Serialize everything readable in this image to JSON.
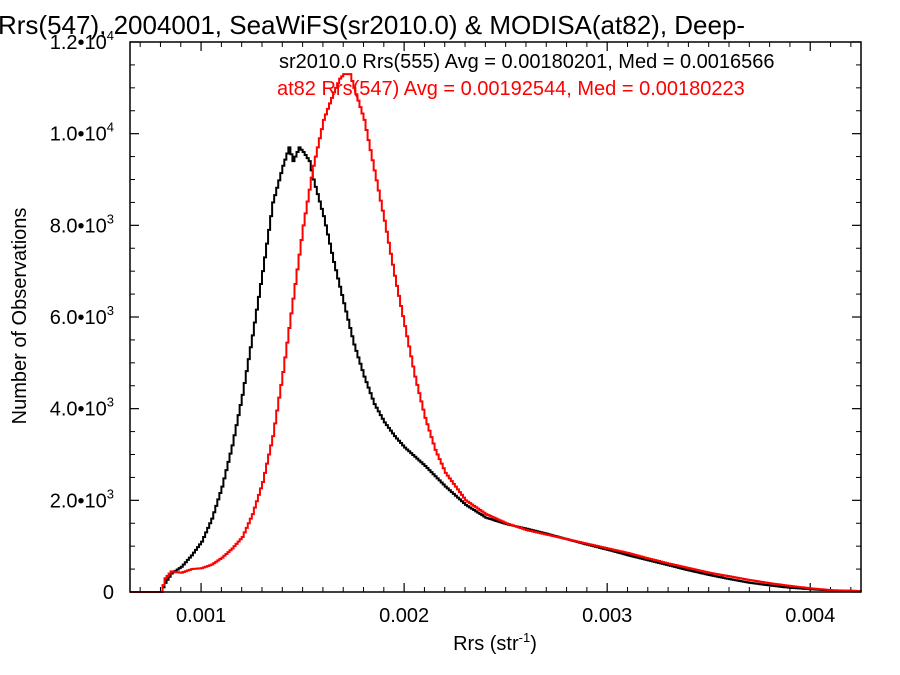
{
  "chart_data": {
    "type": "line",
    "step": true,
    "title": "Rrs(547), 2004001, SeaWiFS(sr2010.0) & MODISA(at82), Deep-",
    "xlabel": "Rrs (str",
    "xlabel_sup": "-1",
    "xlabel_end": ")",
    "ylabel": "Number of Observations",
    "xlim": [
      0.00065,
      0.00425
    ],
    "ylim": [
      0,
      12000
    ],
    "x_ticks": [
      {
        "value": 0.001,
        "label": "0.001"
      },
      {
        "value": 0.002,
        "label": "0.002"
      },
      {
        "value": 0.003,
        "label": "0.003"
      },
      {
        "value": 0.004,
        "label": "0.004"
      }
    ],
    "y_ticks": [
      {
        "value": 0,
        "mant": "0",
        "exp": ""
      },
      {
        "value": 2000,
        "mant": "2.0•10",
        "exp": "3"
      },
      {
        "value": 4000,
        "mant": "4.0•10",
        "exp": "3"
      },
      {
        "value": 6000,
        "mant": "6.0•10",
        "exp": "3"
      },
      {
        "value": 8000,
        "mant": "8.0•10",
        "exp": "3"
      },
      {
        "value": 10000,
        "mant": "1.0•10",
        "exp": "4"
      },
      {
        "value": 12000,
        "mant": "1.2•10",
        "exp": "4"
      }
    ],
    "legend": [
      {
        "text": "sr2010.0 Rrs(555) Avg = 0.00180201, Med = 0.0016566",
        "color": "#000000"
      },
      {
        "text": "at82 Rrs(547) Avg = 0.00192544, Med = 0.00180223",
        "color": "#ff0000"
      }
    ],
    "series": [
      {
        "color": "#000000",
        "x": [
          0.00065,
          0.0008,
          0.00082,
          0.00085,
          0.0009,
          0.00095,
          0.001,
          0.00105,
          0.0011,
          0.00115,
          0.0012,
          0.00125,
          0.0013,
          0.00135,
          0.0014,
          0.00143,
          0.00145,
          0.00148,
          0.0015,
          0.00153,
          0.00155,
          0.0016,
          0.00165,
          0.0017,
          0.00175,
          0.0018,
          0.00185,
          0.0019,
          0.00195,
          0.002,
          0.0021,
          0.0022,
          0.0023,
          0.0024,
          0.0025,
          0.0026,
          0.0027,
          0.0028,
          0.0029,
          0.003,
          0.0031,
          0.0032,
          0.0033,
          0.0034,
          0.0035,
          0.0036,
          0.0037,
          0.0038,
          0.0039,
          0.004,
          0.0041,
          0.00425
        ],
        "y": [
          0,
          0,
          200,
          400,
          550,
          800,
          1100,
          1600,
          2300,
          3200,
          4300,
          5600,
          7000,
          8500,
          9300,
          9700,
          9400,
          9700,
          9600,
          9400,
          9000,
          8200,
          7200,
          6300,
          5400,
          4700,
          4100,
          3700,
          3400,
          3150,
          2750,
          2300,
          1900,
          1620,
          1480,
          1380,
          1270,
          1150,
          1030,
          920,
          800,
          690,
          580,
          470,
          370,
          280,
          200,
          140,
          90,
          60,
          35,
          20
        ]
      },
      {
        "color": "#ff0000",
        "x": [
          0.00065,
          0.0008,
          0.00082,
          0.00085,
          0.0009,
          0.00095,
          0.001,
          0.00105,
          0.0011,
          0.00115,
          0.0012,
          0.00125,
          0.0013,
          0.00135,
          0.0014,
          0.00145,
          0.0015,
          0.00155,
          0.0016,
          0.00165,
          0.00168,
          0.0017,
          0.00173,
          0.00175,
          0.0018,
          0.00185,
          0.0019,
          0.00195,
          0.002,
          0.00205,
          0.0021,
          0.00215,
          0.0022,
          0.0023,
          0.0024,
          0.0025,
          0.0026,
          0.0027,
          0.0028,
          0.0029,
          0.003,
          0.0031,
          0.0032,
          0.0033,
          0.0034,
          0.0035,
          0.0036,
          0.0037,
          0.0038,
          0.0039,
          0.004,
          0.0041,
          0.00425
        ],
        "y": [
          0,
          0,
          300,
          450,
          420,
          500,
          520,
          600,
          750,
          950,
          1200,
          1700,
          2400,
          3400,
          4800,
          6400,
          8000,
          9300,
          10300,
          10900,
          11200,
          11300,
          11300,
          11000,
          10300,
          9200,
          8100,
          6900,
          5800,
          4700,
          3800,
          3100,
          2600,
          2000,
          1700,
          1500,
          1350,
          1250,
          1150,
          1050,
          950,
          850,
          730,
          620,
          520,
          420,
          340,
          260,
          190,
          130,
          80,
          40,
          20
        ]
      }
    ]
  }
}
